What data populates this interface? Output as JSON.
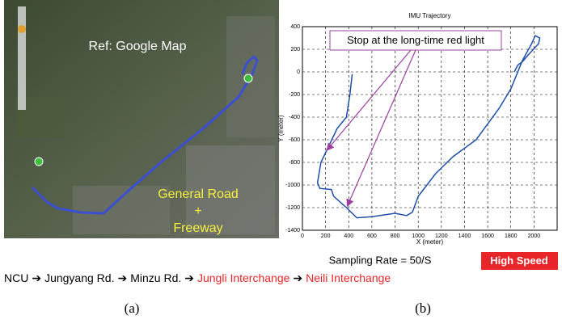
{
  "map": {
    "title": "Ref: Google Map",
    "road_label": [
      "General Road",
      "+",
      "Freeway"
    ]
  },
  "chart_data": {
    "type": "line",
    "title": "IMU Trajectory",
    "xlabel": "X (meter)",
    "ylabel": "Y (meter)",
    "x": [
      430,
      410,
      380,
      300,
      230,
      160,
      130,
      150,
      250,
      270,
      380,
      470,
      600,
      800,
      900,
      950,
      1000,
      1150,
      1300,
      1500,
      1700,
      1800,
      1900,
      1980,
      2010,
      2050,
      2040,
      1950,
      1900,
      1860,
      1830
    ],
    "series": [
      {
        "color": "#1f4fa8",
        "values": [
          -20,
          -200,
          -400,
          -500,
          -650,
          -800,
          -980,
          -1030,
          -1040,
          -1100,
          -1200,
          -1290,
          -1280,
          -1250,
          -1270,
          -1240,
          -1100,
          -900,
          -750,
          -600,
          -320,
          -150,
          100,
          250,
          320,
          300,
          250,
          150,
          90,
          60,
          0
        ]
      }
    ],
    "xlim": [
      0,
      2200
    ],
    "ylim": [
      -1400,
      400
    ],
    "xticks": [
      0,
      200,
      400,
      600,
      800,
      1000,
      1200,
      1400,
      1600,
      1800,
      2000
    ],
    "yticks": [
      -1400,
      -1200,
      -1000,
      -800,
      -600,
      -400,
      -200,
      0,
      200,
      400
    ],
    "grid": true,
    "annotation": "Stop at the long-time red light"
  },
  "sampling_rate": "Sampling Rate = 50/S",
  "badge": "High Speed",
  "route": {
    "separator": "➔",
    "stops": [
      {
        "text": "NCU",
        "color": "#000000"
      },
      {
        "text": "Jungyang Rd.",
        "color": "#000000"
      },
      {
        "text": "Minzu Rd.",
        "color": "#000000"
      },
      {
        "text": "Jungli Interchange",
        "color": "#e8262a"
      },
      {
        "text": "Neili Interchange",
        "color": "#e8262a"
      }
    ]
  },
  "labels": [
    "(a)",
    "(b)"
  ]
}
